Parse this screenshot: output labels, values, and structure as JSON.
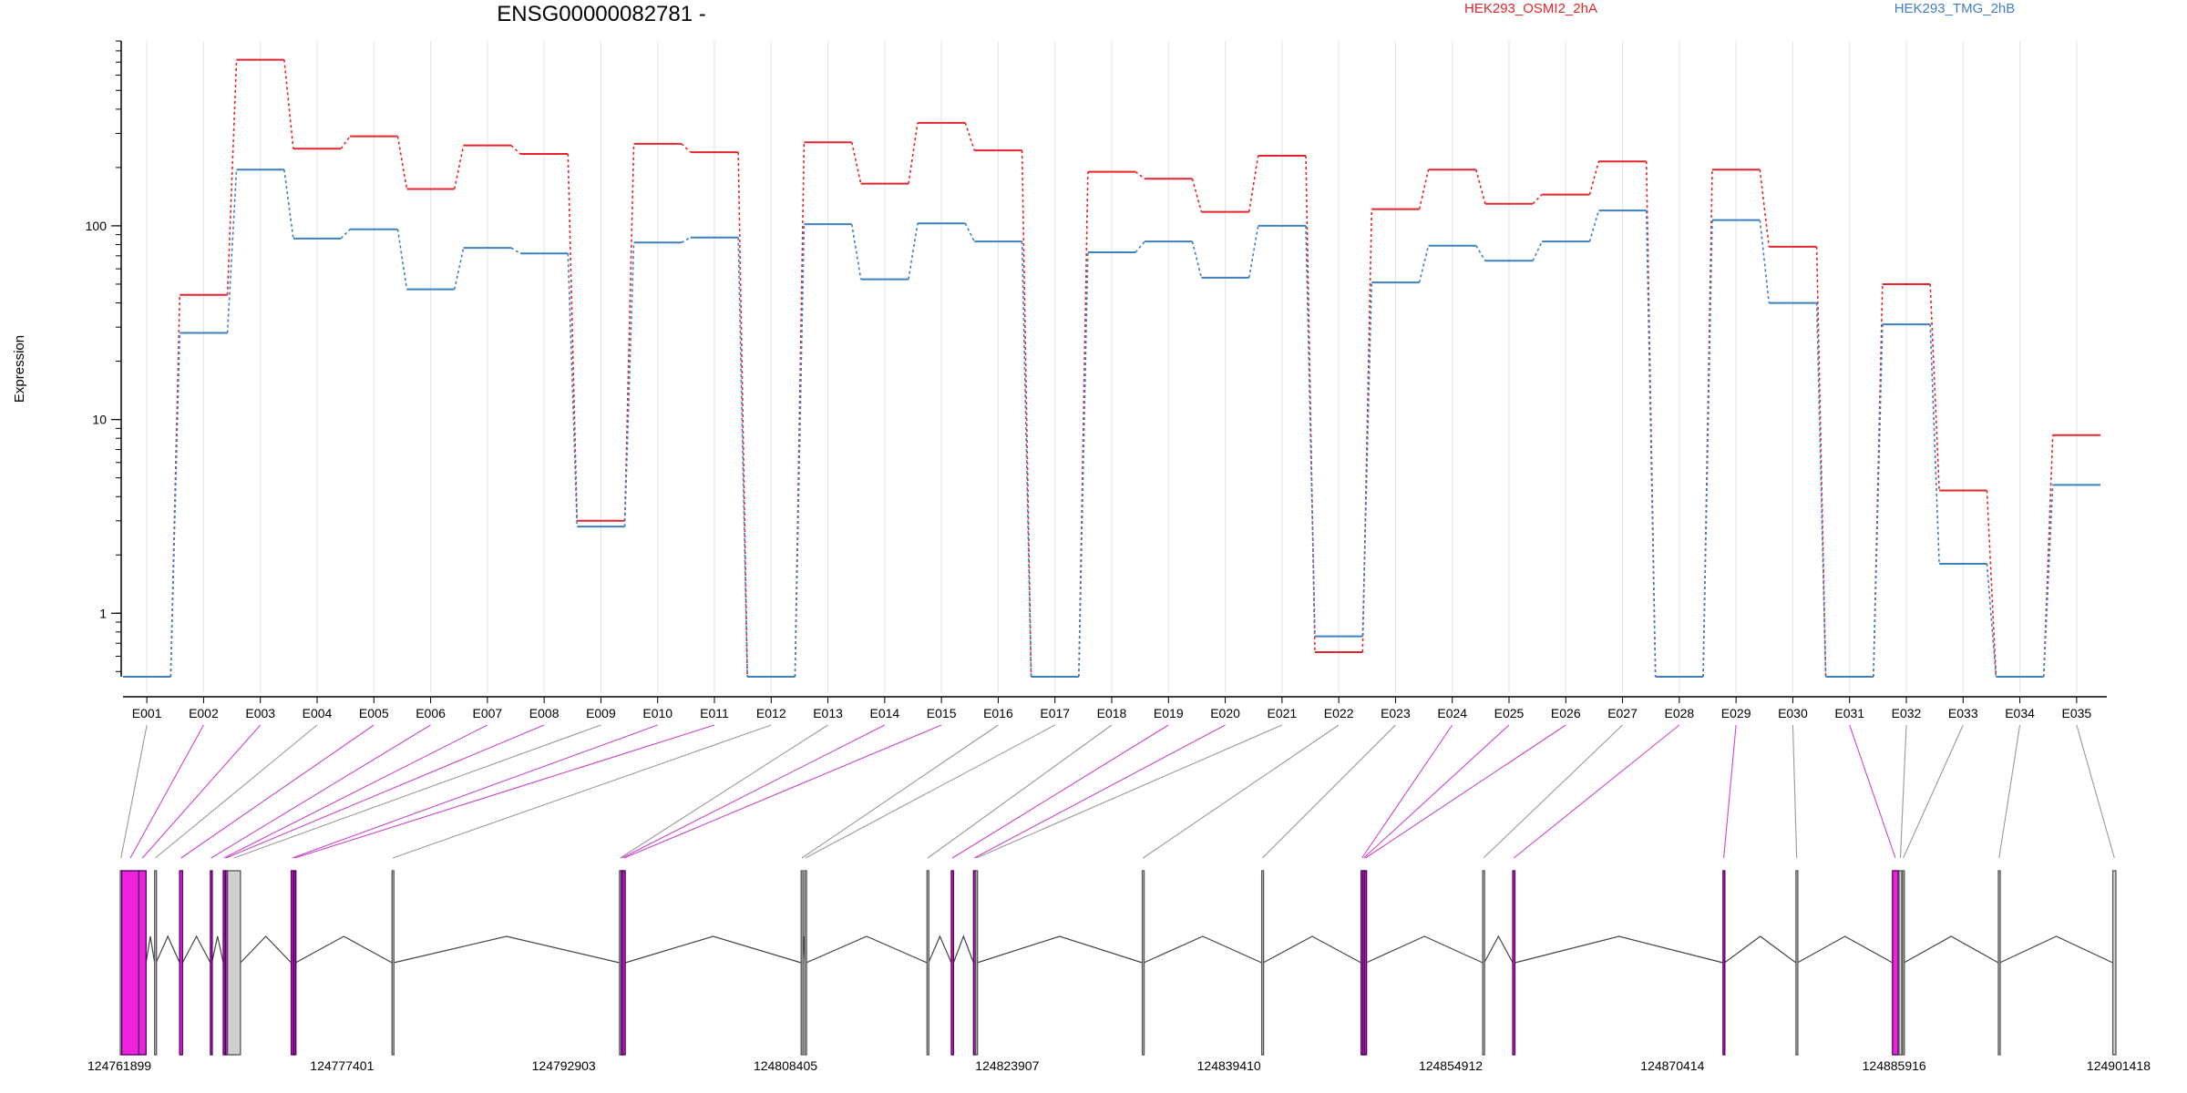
{
  "title": "ENSG00000082781 -",
  "ylabel": "Expression",
  "colors": {
    "series_a": "#e3262b",
    "series_b": "#3f7fc0",
    "exon_tested": "#ee22dd",
    "exon_untested": "#d0d0d0",
    "connector_tested": "#cc44cc",
    "connector_untested": "#999999",
    "axis": "#000000",
    "grid": "#dde3ee"
  },
  "chart_data": {
    "type": "line",
    "scale": "log",
    "ylim": [
      0.47,
      900
    ],
    "yticks": [
      {
        "value": 1,
        "label": "1"
      },
      {
        "value": 10,
        "label": "10"
      },
      {
        "value": 100,
        "label": "100"
      }
    ],
    "grid": "vertical",
    "legend_position": "top",
    "categories": [
      "E001",
      "E002",
      "E003",
      "E004",
      "E005",
      "E006",
      "E007",
      "E008",
      "E009",
      "E010",
      "E011",
      "E012",
      "E013",
      "E014",
      "E015",
      "E016",
      "E017",
      "E018",
      "E019",
      "E020",
      "E021",
      "E022",
      "E023",
      "E024",
      "E025",
      "E026",
      "E027",
      "E028",
      "E029",
      "E030",
      "E031",
      "E032",
      "E033",
      "E034",
      "E035"
    ],
    "series": [
      {
        "name": "HEK293_OSMI2_2hA",
        "color": "#e3262b",
        "values": [
          0.47,
          44,
          720,
          250,
          290,
          155,
          260,
          235,
          3.0,
          265,
          240,
          0.47,
          270,
          165,
          340,
          245,
          0.47,
          190,
          175,
          118,
          230,
          0.63,
          122,
          195,
          130,
          145,
          215,
          0.47,
          195,
          78,
          0.47,
          50,
          4.3,
          0.47,
          8.3
        ]
      },
      {
        "name": "HEK293_TMG_2hB",
        "color": "#3f7fc0",
        "values": [
          0.47,
          28,
          195,
          86,
          96,
          47,
          77,
          72,
          2.8,
          82,
          87,
          0.47,
          102,
          53,
          103,
          83,
          0.47,
          73,
          83,
          54,
          100,
          0.76,
          51,
          79,
          66,
          83,
          120,
          0.47,
          107,
          40,
          0.47,
          31,
          1.8,
          0.47,
          4.6
        ]
      }
    ]
  },
  "gene_model": {
    "coordinate_labels": [
      "124761899",
      "124777401",
      "124792903",
      "124808405",
      "124823907",
      "124839410",
      "124854912",
      "124870414",
      "124885916",
      "124901418"
    ],
    "coordinate_range": [
      124761899,
      124901418
    ],
    "exons": [
      {
        "id": "E001",
        "start": 124761899,
        "end": 124761999,
        "tested": false
      },
      {
        "id": "E002",
        "start": 124762000,
        "end": 124763200,
        "tested": true
      },
      {
        "id": "E003",
        "start": 124763201,
        "end": 124763700,
        "tested": true
      },
      {
        "id": "E004",
        "start": 124764300,
        "end": 124764400,
        "tested": false
      },
      {
        "id": "E005",
        "start": 124766050,
        "end": 124766250,
        "tested": true
      },
      {
        "id": "E006",
        "start": 124768200,
        "end": 124768300,
        "tested": true
      },
      {
        "id": "E007",
        "start": 124769100,
        "end": 124769200,
        "tested": true
      },
      {
        "id": "E008",
        "start": 124769250,
        "end": 124769350,
        "tested": true
      },
      {
        "id": "E009",
        "start": 124769400,
        "end": 124770300,
        "tested": false
      },
      {
        "id": "E010",
        "start": 124773850,
        "end": 124774000,
        "tested": true
      },
      {
        "id": "E011",
        "start": 124774050,
        "end": 124774150,
        "tested": true
      },
      {
        "id": "E012",
        "start": 124780900,
        "end": 124781000,
        "tested": false
      },
      {
        "id": "E013",
        "start": 124796800,
        "end": 124796900,
        "tested": false
      },
      {
        "id": "E014",
        "start": 124796920,
        "end": 124797020,
        "tested": true
      },
      {
        "id": "E015",
        "start": 124797040,
        "end": 124797200,
        "tested": true
      },
      {
        "id": "E016",
        "start": 124809500,
        "end": 124809600,
        "tested": false
      },
      {
        "id": "E017",
        "start": 124809750,
        "end": 124809850,
        "tested": false
      },
      {
        "id": "E018",
        "start": 124818300,
        "end": 124818400,
        "tested": false
      },
      {
        "id": "E019",
        "start": 124820000,
        "end": 124820150,
        "tested": true
      },
      {
        "id": "E020",
        "start": 124821550,
        "end": 124821650,
        "tested": true
      },
      {
        "id": "E021",
        "start": 124821700,
        "end": 124821800,
        "tested": false
      },
      {
        "id": "E022",
        "start": 124833350,
        "end": 124833450,
        "tested": false
      },
      {
        "id": "E023",
        "start": 124841700,
        "end": 124841800,
        "tested": false
      },
      {
        "id": "E024",
        "start": 124848650,
        "end": 124848750,
        "tested": true
      },
      {
        "id": "E025",
        "start": 124848780,
        "end": 124848880,
        "tested": true
      },
      {
        "id": "E026",
        "start": 124848900,
        "end": 124849000,
        "tested": true
      },
      {
        "id": "E027",
        "start": 124857150,
        "end": 124857250,
        "tested": false
      },
      {
        "id": "E028",
        "start": 124859250,
        "end": 124859400,
        "tested": true
      },
      {
        "id": "E029",
        "start": 124873950,
        "end": 124874050,
        "tested": true
      },
      {
        "id": "E030",
        "start": 124879050,
        "end": 124879150,
        "tested": false
      },
      {
        "id": "E031",
        "start": 124885800,
        "end": 124886200,
        "tested": true
      },
      {
        "id": "E032",
        "start": 124886250,
        "end": 124886450,
        "tested": false
      },
      {
        "id": "E033",
        "start": 124886500,
        "end": 124886600,
        "tested": false
      },
      {
        "id": "E034",
        "start": 124893200,
        "end": 124893300,
        "tested": false
      },
      {
        "id": "E035",
        "start": 124901200,
        "end": 124901418,
        "tested": false
      }
    ]
  }
}
